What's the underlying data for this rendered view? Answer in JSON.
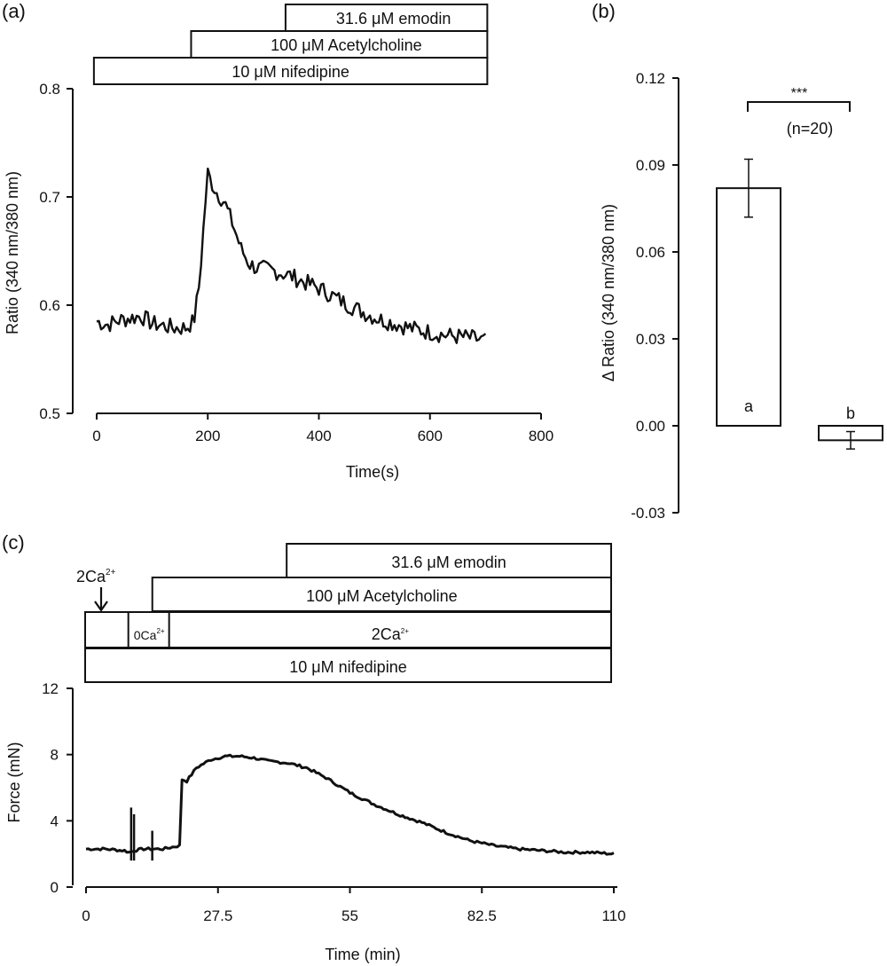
{
  "chart_data": [
    {
      "panel": "(a)",
      "type": "line",
      "xlabel": "Time(s)",
      "ylabel": "Ratio (340 nm/380 nm)",
      "xlim": [
        0,
        800
      ],
      "ylim": [
        0.5,
        0.8
      ],
      "xticks": [
        "0",
        "200",
        "400",
        "600",
        "800"
      ],
      "yticks": [
        "0.5",
        "0.6",
        "0.7",
        "0.8"
      ],
      "treatments": [
        {
          "label": "31.6 μM emodin",
          "start": 340,
          "end": 700
        },
        {
          "label": "100 μM Acetylcholine",
          "start": 170,
          "end": 700
        },
        {
          "label": "10 μM nifedipine",
          "start": -5,
          "end": 700
        }
      ],
      "series": [
        {
          "x": [
            0,
            20,
            40,
            60,
            80,
            100,
            120,
            140,
            160,
            175,
            185,
            195,
            200,
            205,
            215,
            230,
            245,
            260,
            275,
            290,
            310,
            330,
            350,
            370,
            390,
            410,
            430,
            450,
            470,
            490,
            510,
            530,
            550,
            570,
            590,
            610,
            630,
            650,
            670,
            690,
            700
          ],
          "y": [
            0.585,
            0.582,
            0.586,
            0.588,
            0.59,
            0.583,
            0.581,
            0.579,
            0.579,
            0.585,
            0.62,
            0.69,
            0.722,
            0.715,
            0.705,
            0.695,
            0.675,
            0.652,
            0.638,
            0.634,
            0.633,
            0.63,
            0.627,
            0.622,
            0.618,
            0.613,
            0.607,
            0.601,
            0.596,
            0.591,
            0.587,
            0.584,
            0.581,
            0.578,
            0.576,
            0.574,
            0.572,
            0.571,
            0.57,
            0.568,
            0.567
          ]
        }
      ]
    },
    {
      "panel": "(b)",
      "type": "bar",
      "categories": [
        "a",
        "b"
      ],
      "values": [
        0.082,
        -0.005
      ],
      "errors": [
        0.01,
        0.003
      ],
      "ylabel": "Δ Ratio (340  nm/380 nm)",
      "ylim": [
        -0.03,
        0.12
      ],
      "yticks": [
        "-0.03",
        "0.00",
        "0.03",
        "0.06",
        "0.09",
        "0.12"
      ],
      "significance": "***",
      "n_label": "(n=20)"
    },
    {
      "panel": "(c)",
      "type": "line",
      "xlabel": "Time (min)",
      "ylabel": "Force (mN)",
      "xlim": [
        0,
        110
      ],
      "ylim": [
        0,
        12
      ],
      "xticks": [
        "0",
        "27.5",
        "55",
        "82.5",
        "110"
      ],
      "yticks": [
        "0",
        "4",
        "8",
        "12"
      ],
      "arrow_label": "2Ca",
      "arrow_label_sup": "2+",
      "treatments": [
        {
          "label": "31.6 μM emodin",
          "start": 42,
          "end": 110
        },
        {
          "label": "100 μM Acetylcholine",
          "start": 14,
          "end": 110
        },
        {
          "label": "10 μM nifedipine",
          "start": 0,
          "end": 110
        }
      ],
      "calcium_segments": [
        {
          "label": "",
          "start": 0,
          "end": 9
        },
        {
          "label": "0Ca",
          "sup": "2+",
          "start": 9,
          "end": 17.5
        },
        {
          "label": "2Ca",
          "sup": "2+",
          "start": 17.5,
          "end": 110
        }
      ],
      "series": [
        {
          "x": [
            0,
            4,
            8,
            9,
            10,
            12,
            14,
            16,
            19.5,
            20,
            21,
            23,
            26,
            29,
            32,
            35,
            38,
            42,
            46,
            50,
            55,
            60,
            65,
            70,
            75,
            80,
            85,
            90,
            95,
            100,
            105,
            110
          ],
          "y": [
            2.3,
            2.3,
            2.2,
            2.1,
            2.2,
            2.3,
            2.3,
            2.3,
            2.5,
            6.5,
            6.4,
            7.2,
            7.7,
            7.9,
            7.9,
            7.8,
            7.6,
            7.5,
            7.2,
            6.6,
            5.7,
            5.0,
            4.4,
            3.9,
            3.3,
            2.8,
            2.5,
            2.3,
            2.2,
            2.1,
            2.1,
            2.0
          ]
        }
      ],
      "spikes": [
        {
          "x": 9.4,
          "y": 4.8
        },
        {
          "x": 10.0,
          "y": 4.4
        },
        {
          "x": 13.8,
          "y": 3.4
        }
      ]
    }
  ],
  "panel_labels": {
    "a": "(a)",
    "b": "(b)",
    "c": "(c)"
  }
}
